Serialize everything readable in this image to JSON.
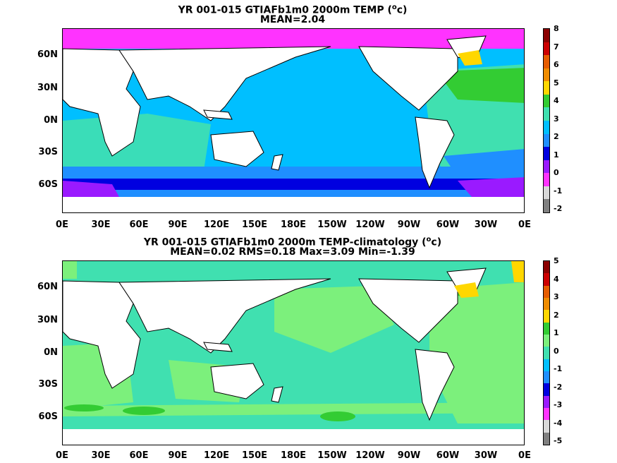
{
  "top": {
    "title_main": "YR 001-015 GTIAFb1m0 2000m TEMP (",
    "title_unit_sup": "o",
    "title_unit_tail": "c)",
    "stats": "MEAN=2.04",
    "colorbar_labels": [
      "8",
      "7",
      "6",
      "5",
      "4",
      "3",
      "2",
      "1",
      "0",
      "-1",
      "-2"
    ],
    "colorbar_colors": [
      "#8b0000",
      "#cc0000",
      "#e65c00",
      "#f08c00",
      "#ffd700",
      "#33cc33",
      "#40e0b0",
      "#00bfff",
      "#1f8fff",
      "#0000e0",
      "#9a1aff",
      "#ff33ff",
      "#d9d9d9",
      "#808080"
    ]
  },
  "bottom": {
    "title_main": "YR 001-015 GTIAFb1m0 2000m TEMP-climatology (",
    "title_unit_sup": "o",
    "title_unit_tail": "c)",
    "stats": "MEAN=0.02   RMS=0.18   Max=3.09   Min=-1.39",
    "colorbar_labels": [
      "5",
      "4",
      "3",
      "2",
      "1",
      "0",
      "-1",
      "-2",
      "-3",
      "-4",
      "-5"
    ],
    "colorbar_colors": [
      "#8b0000",
      "#cc0000",
      "#e65c00",
      "#f08c00",
      "#ffd700",
      "#33cc33",
      "#7cf07c",
      "#40e0b0",
      "#00bfff",
      "#1f8fff",
      "#0000e0",
      "#9a1aff",
      "#ff33ff",
      "#d9d9d9",
      "#808080"
    ]
  },
  "axes": {
    "lat_labels": [
      "60N",
      "30N",
      "0N",
      "30S",
      "60S"
    ],
    "lon_labels": [
      "0E",
      "30E",
      "60E",
      "90E",
      "120E",
      "150E",
      "180E",
      "150W",
      "120W",
      "90W",
      "60W",
      "30W",
      "0E"
    ]
  }
}
